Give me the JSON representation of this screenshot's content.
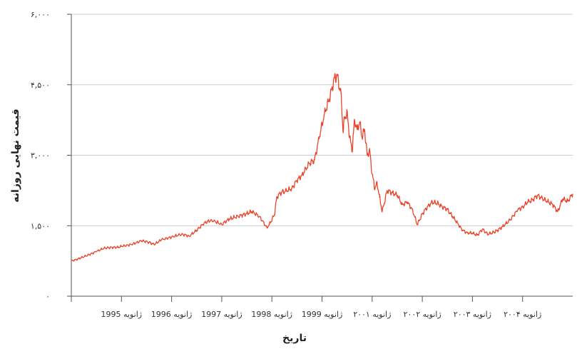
{
  "chart_data": {
    "type": "line",
    "title": "",
    "xlabel": "تاریخ",
    "ylabel": "قیمت نهایی روزانه",
    "ylim": [
      0,
      6000
    ],
    "xlim": [
      "1994-01",
      "2004-12"
    ],
    "grid": true,
    "y_ticks": [
      {
        "value": 0,
        "label": "۰"
      },
      {
        "value": 1500,
        "label": "۱,۵۰۰"
      },
      {
        "value": 3000,
        "label": "۳,۰۰۰"
      },
      {
        "value": 4500,
        "label": "۴,۵۰۰"
      },
      {
        "value": 6000,
        "label": "۶,۰۰۰"
      }
    ],
    "x_ticks": [
      {
        "value": 1,
        "label": "ژانویه 1995"
      },
      {
        "value": 2,
        "label": "ژانویه 1996"
      },
      {
        "value": 3,
        "label": "ژانویه 1997"
      },
      {
        "value": 4,
        "label": "ژانویه 1998"
      },
      {
        "value": 5,
        "label": "ژانویه 1999"
      },
      {
        "value": 6,
        "label": "ژانویه ۲۰۰۱"
      },
      {
        "value": 7,
        "label": "ژانویه ۲۰۰۲"
      },
      {
        "value": 8,
        "label": "ژانویه ۲۰۰۳"
      },
      {
        "value": 9,
        "label": "ژانویه ۲۰۰۴"
      }
    ],
    "series": [
      {
        "color": "#e8452c",
        "x": [
          0,
          0.1,
          0.2,
          0.35,
          0.5,
          0.65,
          0.8,
          0.95,
          1.0,
          1.2,
          1.4,
          1.55,
          1.65,
          1.8,
          2.0,
          2.2,
          2.35,
          2.5,
          2.65,
          2.8,
          3.0,
          3.15,
          3.25,
          3.4,
          3.5,
          3.6,
          3.75,
          3.9,
          3.95,
          4.05,
          4.1,
          4.2,
          4.3,
          4.4,
          4.5,
          4.6,
          4.75,
          4.85,
          4.95,
          5.05,
          5.15,
          5.25,
          5.3,
          5.38,
          5.42,
          5.45,
          5.5,
          5.55,
          5.6,
          5.65,
          5.7,
          5.75,
          5.8,
          5.85,
          5.9,
          5.95,
          6.0,
          6.05,
          6.1,
          6.15,
          6.2,
          6.3,
          6.4,
          6.5,
          6.6,
          6.7,
          6.8,
          6.9,
          7.0,
          7.1,
          7.2,
          7.3,
          7.4,
          7.5,
          7.6,
          7.7,
          7.8,
          7.9,
          8.0,
          8.1,
          8.2,
          8.3,
          8.4,
          8.5,
          8.6,
          8.75,
          8.9,
          9.0,
          9.1,
          9.2,
          9.3,
          9.4,
          9.5,
          9.6,
          9.7,
          9.8,
          9.9,
          10.0
        ],
        "values": [
          750,
          780,
          820,
          880,
          950,
          1020,
          1040,
          1040,
          1060,
          1100,
          1180,
          1150,
          1100,
          1200,
          1260,
          1320,
          1280,
          1400,
          1560,
          1620,
          1530,
          1640,
          1680,
          1720,
          1760,
          1800,
          1700,
          1460,
          1530,
          1730,
          2120,
          2220,
          2240,
          2300,
          2460,
          2580,
          2830,
          2900,
          3400,
          3900,
          4200,
          4650,
          4700,
          4300,
          3500,
          3800,
          3900,
          3400,
          3100,
          3750,
          3550,
          3700,
          3380,
          3550,
          3000,
          3100,
          2600,
          2300,
          2400,
          2100,
          1800,
          2250,
          2200,
          2150,
          1950,
          2000,
          1850,
          1520,
          1750,
          1900,
          2000,
          1980,
          1900,
          1850,
          1700,
          1560,
          1400,
          1350,
          1340,
          1300,
          1430,
          1320,
          1350,
          1400,
          1480,
          1620,
          1830,
          1900,
          2000,
          2050,
          2150,
          2070,
          2020,
          1950,
          1800,
          2070,
          2020,
          2180
        ]
      }
    ]
  }
}
